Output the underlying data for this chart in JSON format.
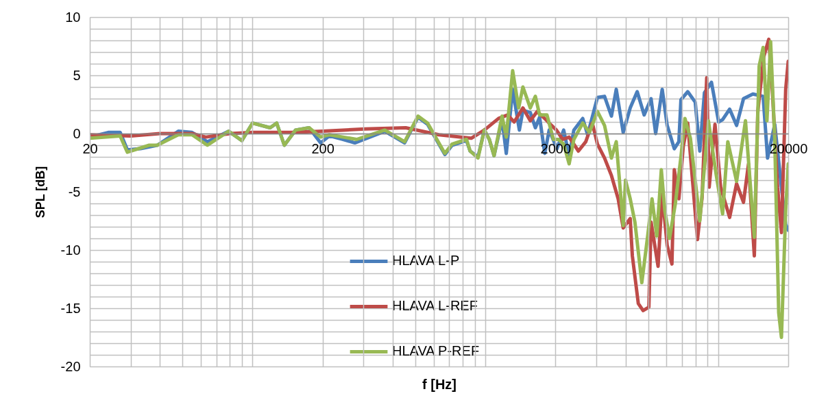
{
  "chart_data": {
    "type": "line",
    "xlabel": "f [Hz]",
    "ylabel": "SPL [dB]",
    "log": "x",
    "grid": true,
    "legend": "bottom",
    "line_style": "solid",
    "marker": "none",
    "xlim": [
      20,
      20000
    ],
    "ylim": [
      -20,
      10
    ],
    "xticks": [
      20,
      {
        "value": 30,
        "label": null
      },
      {
        "value": 40,
        "label": null
      },
      {
        "value": 50,
        "label": null
      },
      {
        "value": 60,
        "label": null
      },
      {
        "value": 70,
        "label": null
      },
      {
        "value": 80,
        "label": null
      },
      {
        "value": 90,
        "label": null
      },
      {
        "value": 100,
        "label": null
      },
      200,
      {
        "value": 300,
        "label": null
      },
      {
        "value": 400,
        "label": null
      },
      {
        "value": 500,
        "label": null
      },
      {
        "value": 600,
        "label": null
      },
      {
        "value": 700,
        "label": null
      },
      {
        "value": 800,
        "label": null
      },
      {
        "value": 900,
        "label": null
      },
      {
        "value": 1000,
        "label": null
      },
      2000,
      {
        "value": 3000,
        "label": null
      },
      {
        "value": 4000,
        "label": null
      },
      {
        "value": 5000,
        "label": null
      },
      {
        "value": 6000,
        "label": null
      },
      {
        "value": 7000,
        "label": null
      },
      {
        "value": 8000,
        "label": null
      },
      {
        "value": 9000,
        "label": null
      },
      {
        "value": 10000,
        "label": null
      },
      20000
    ],
    "yticks": [
      -20,
      {
        "value": -19,
        "label": null
      },
      {
        "value": -18,
        "label": null
      },
      {
        "value": -17,
        "label": null
      },
      {
        "value": -16,
        "label": null
      },
      -15,
      {
        "value": -14,
        "label": null
      },
      {
        "value": -13,
        "label": null
      },
      {
        "value": -12,
        "label": null
      },
      {
        "value": -11,
        "label": null
      },
      -10,
      {
        "value": -9,
        "label": null
      },
      {
        "value": -8,
        "label": null
      },
      {
        "value": -7,
        "label": null
      },
      {
        "value": -6,
        "label": null
      },
      -5,
      {
        "value": -4,
        "label": null
      },
      {
        "value": -3,
        "label": null
      },
      {
        "value": -2,
        "label": null
      },
      {
        "value": -1,
        "label": null
      },
      0,
      {
        "value": 1,
        "label": null
      },
      {
        "value": 2,
        "label": null
      },
      {
        "value": 3,
        "label": null
      },
      {
        "value": 4,
        "label": null
      },
      5,
      {
        "value": 6,
        "label": null
      },
      {
        "value": 7,
        "label": null
      },
      {
        "value": 8,
        "label": null
      },
      {
        "value": 9,
        "label": null
      },
      10
    ],
    "series": [
      {
        "name": "HLAVA L-P",
        "color": "#4a7ebb",
        "x": [
          20,
          24,
          27,
          29,
          33,
          39,
          48,
          55,
          64,
          79,
          90,
          100,
          119,
          127,
          137,
          153,
          175,
          196,
          214,
          245,
          275,
          370,
          450,
          514,
          565,
          670,
          720,
          830,
          860,
          930,
          990,
          1040,
          1090,
          1180,
          1230,
          1310,
          1400,
          1450,
          1560,
          1640,
          1710,
          1800,
          1880,
          2030,
          2170,
          2290,
          2400,
          2620,
          2750,
          3030,
          3250,
          3480,
          3650,
          3910,
          4190,
          4490,
          4810,
          5150,
          5390,
          5750,
          6040,
          6480,
          6780,
          6920,
          7400,
          7970,
          8340,
          8730,
          9360,
          10050,
          10450,
          11200,
          12000,
          12850,
          14100,
          15600,
          16300,
          17500,
          18700,
          19500,
          20000
        ],
        "values": [
          -0.3,
          0.1,
          0.1,
          -1.4,
          -1.3,
          -1.0,
          0.2,
          0.1,
          -0.7,
          0.2,
          -0.6,
          0.9,
          0.5,
          0.9,
          -1.0,
          0.3,
          0.5,
          -0.8,
          -0.2,
          -0.5,
          -0.8,
          0.2,
          -0.8,
          1.4,
          0.8,
          -1.8,
          -1.0,
          -0.6,
          -1.5,
          -2.0,
          0.3,
          -0.5,
          -1.9,
          1.2,
          -1.7,
          3.8,
          0.3,
          2.0,
          1.8,
          0.5,
          1.4,
          -1.7,
          0.3,
          -1.3,
          0.3,
          -1.9,
          0.3,
          1.3,
          -0.1,
          3.1,
          3.2,
          1.5,
          3.8,
          0.1,
          2.2,
          3.6,
          1.6,
          3.0,
          0,
          3.8,
          0.7,
          -1.3,
          -0.7,
          2.9,
          3.6,
          2.7,
          -1.5,
          3.5,
          4.4,
          1.0,
          1.2,
          2.1,
          0.7,
          3.0,
          3.4,
          3.2,
          -2.1,
          0.8,
          -4.6,
          -7.8,
          -8.3
        ]
      },
      {
        "name": "HLAVA L-REF",
        "color": "#be4b48",
        "x": [
          20,
          30,
          40,
          55,
          63,
          80,
          100,
          150,
          200,
          245,
          304,
          455,
          632,
          870,
          990,
          1140,
          1245,
          1330,
          1450,
          1560,
          1670,
          1840,
          1880,
          2020,
          2150,
          2290,
          2510,
          2700,
          2880,
          3030,
          3250,
          3480,
          3720,
          3910,
          4190,
          4280,
          4540,
          4760,
          5040,
          5150,
          5520,
          5750,
          6040,
          6330,
          6480,
          6780,
          7080,
          7400,
          8150,
          8530,
          8930,
          9150,
          9690,
          10250,
          11200,
          12000,
          12850,
          13500,
          14300,
          14800,
          15700,
          16500,
          17100,
          18000,
          18700,
          19500,
          20000
        ],
        "values": [
          -0.1,
          -0.2,
          0,
          0,
          -0.3,
          0,
          0.1,
          0.1,
          0.2,
          0.3,
          0.4,
          0.5,
          -0.1,
          -0.4,
          0.3,
          1.3,
          1.6,
          1.0,
          2.2,
          1.1,
          1.9,
          1.1,
          0.9,
          0.3,
          -0.5,
          -0.3,
          -1.5,
          -0.7,
          0.9,
          -0.9,
          -2.1,
          -3.6,
          -5.6,
          -8.1,
          -7.3,
          -10.5,
          -14.6,
          -15.2,
          -14.9,
          -7.6,
          -11.4,
          -5.2,
          -9.6,
          -11.2,
          -3.1,
          -5.6,
          -1.1,
          0.9,
          -9.1,
          -5.5,
          4.8,
          -4.6,
          0.8,
          -4.6,
          -7.2,
          -4.3,
          -5.9,
          -2.6,
          -10.5,
          1.9,
          6.6,
          8.1,
          3.6,
          -4.6,
          -8.5,
          3.8,
          6.2
        ]
      },
      {
        "name": "HLAVA P-REF",
        "color": "#98b954",
        "x": [
          20,
          27,
          29,
          36,
          39,
          48,
          55,
          64,
          79,
          90,
          100,
          119,
          127,
          137,
          153,
          175,
          196,
          214,
          245,
          280,
          370,
          450,
          514,
          565,
          670,
          720,
          830,
          860,
          930,
          990,
          1040,
          1090,
          1180,
          1230,
          1310,
          1390,
          1450,
          1560,
          1640,
          1710,
          1840,
          1960,
          2060,
          2170,
          2290,
          2400,
          2620,
          2800,
          3030,
          3250,
          3480,
          3650,
          3910,
          4000,
          4190,
          4390,
          4700,
          4980,
          5200,
          5450,
          5700,
          5900,
          6180,
          6550,
          6930,
          7200,
          7600,
          8340,
          9080,
          9800,
          10450,
          11000,
          12000,
          13100,
          14300,
          15000,
          15600,
          16200,
          16800,
          17500,
          18200,
          18700,
          19500,
          20000
        ],
        "values": [
          -0.4,
          -0.2,
          -1.6,
          -1.0,
          -1.0,
          -0.1,
          -0.1,
          -1.0,
          0.2,
          -0.6,
          0.9,
          0.5,
          0.9,
          -1.0,
          0.3,
          0.5,
          -0.3,
          -0.1,
          -0.3,
          -0.5,
          0.3,
          -0.7,
          1.5,
          0.9,
          -1.7,
          -0.9,
          -0.5,
          -1.5,
          -2.1,
          0.3,
          -0.5,
          -1.9,
          1.5,
          -0.3,
          5.4,
          2.2,
          4.0,
          2.2,
          3.2,
          1.6,
          1.6,
          -0.5,
          -0.5,
          -0.9,
          -2.6,
          -0.5,
          0.9,
          0.1,
          1.9,
          0.7,
          -2.1,
          -0.7,
          -7.9,
          -4.0,
          -5.6,
          -7.6,
          -12.8,
          -8.8,
          -5.6,
          -8.8,
          -3.1,
          -6.6,
          -9.0,
          -6.0,
          -1.9,
          1.3,
          -0.4,
          -7.5,
          1.1,
          -3.5,
          -6.9,
          -0.7,
          -4.1,
          1.1,
          -8.9,
          5.8,
          7.4,
          1.1,
          7.9,
          -0.5,
          -15.4,
          -17.5,
          -6.6,
          -2.6
        ]
      }
    ]
  }
}
